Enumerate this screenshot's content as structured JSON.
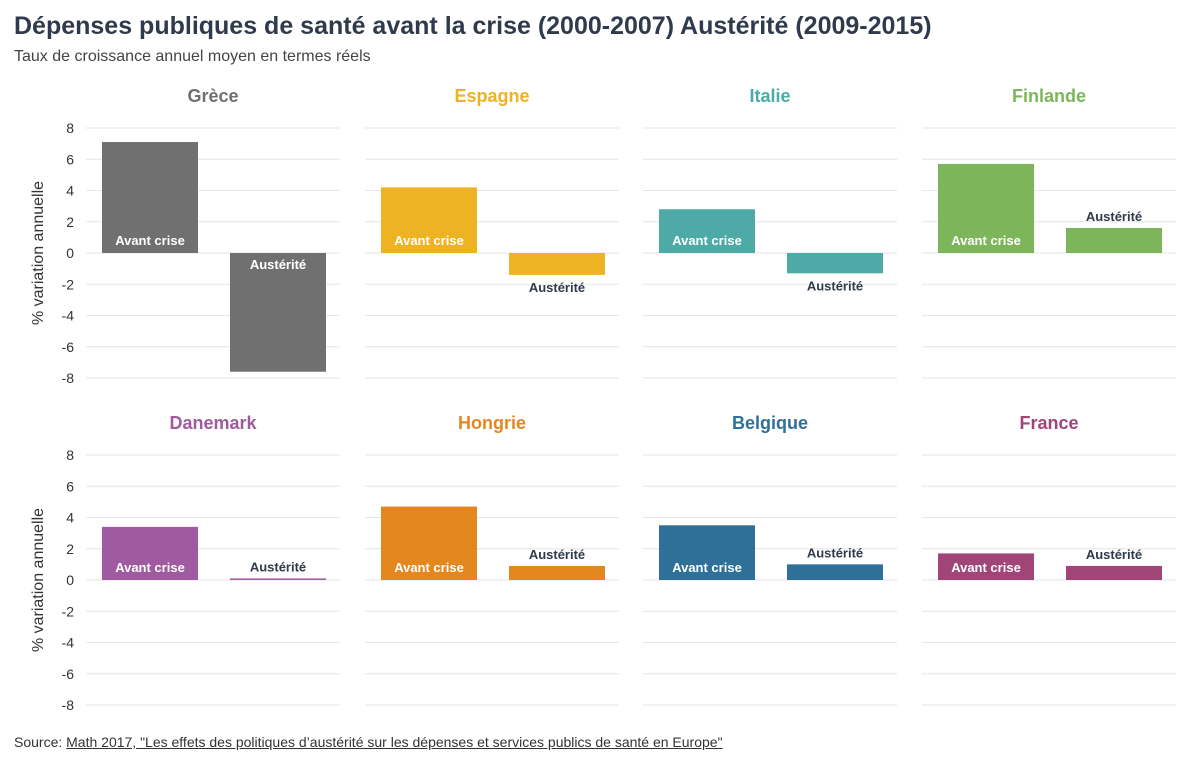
{
  "title": "Dépenses publiques de santé avant la crise (2000-2007) Austérité (2009-2015)",
  "subtitle": "Taux de croissance annuel moyen en termes réels",
  "source": {
    "prefix": "Source:",
    "link_text": "Math 2017, \"Les effets des politiques d’austérité sur les dépenses et services publics de santé en Europe\""
  },
  "chart_data": {
    "type": "bar",
    "ylabel": "% variation annuelle",
    "ylim": [
      -8,
      8
    ],
    "yticks": [
      8,
      6,
      4,
      2,
      0,
      -2,
      -4,
      -6,
      -8
    ],
    "grid": true,
    "categories": [
      "Avant crise",
      "Austérité"
    ],
    "panels": [
      {
        "name": "Grèce",
        "color": "#707070",
        "values": [
          7.1,
          -7.6
        ]
      },
      {
        "name": "Espagne",
        "color": "#edb322",
        "values": [
          4.2,
          -1.4
        ]
      },
      {
        "name": "Italie",
        "color": "#4daaa7",
        "values": [
          2.8,
          -1.3
        ]
      },
      {
        "name": "Finlande",
        "color": "#7db65a",
        "values": [
          5.7,
          1.6
        ]
      },
      {
        "name": "Danemark",
        "color": "#a05a9f",
        "values": [
          3.4,
          0.1
        ]
      },
      {
        "name": "Hongrie",
        "color": "#e4871f",
        "values": [
          4.7,
          0.9
        ]
      },
      {
        "name": "Belgique",
        "color": "#2f7099",
        "values": [
          3.5,
          1.0
        ]
      },
      {
        "name": "France",
        "color": "#a14478",
        "values": [
          1.7,
          0.9
        ]
      }
    ]
  }
}
